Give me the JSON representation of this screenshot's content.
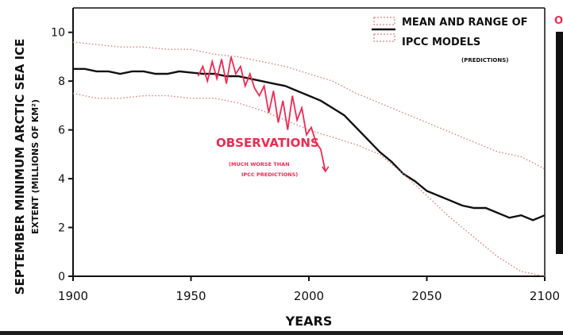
{
  "chart_data": {
    "type": "line",
    "xlabel": "YEARS",
    "ylabel_line1": "SEPTEMBER MINIMUM ARCTIC SEA ICE",
    "ylabel_line2": "EXTENT (MILLIONS OF KM²)",
    "xlim": [
      1900,
      2100
    ],
    "ylim": [
      0,
      11
    ],
    "x_ticks": [
      1900,
      1950,
      2000,
      2050,
      2100
    ],
    "y_ticks": [
      0,
      2,
      4,
      6,
      8,
      10
    ],
    "grid": false,
    "legend": {
      "placement": "top-right",
      "line1": "MEAN AND RANGE OF",
      "line2": "IPCC MODELS",
      "line3": "(PREDICTIONS)"
    },
    "annotations": {
      "observations_label": "OBSERVATIONS",
      "observations_note_line1": "(MUCH WORSE THAN",
      "observations_note_line2": "IPCC PREDICTIONS)",
      "edge_letter": "O"
    },
    "colors": {
      "mean": "#111111",
      "range": "#d98080",
      "observations": "#ee2a52",
      "background": "#ffffff"
    },
    "series": [
      {
        "name": "mean",
        "style": "solid",
        "x": [
          1900,
          1905,
          1910,
          1915,
          1920,
          1925,
          1930,
          1935,
          1940,
          1945,
          1950,
          1955,
          1960,
          1965,
          1970,
          1975,
          1980,
          1985,
          1990,
          1995,
          2000,
          2005,
          2010,
          2015,
          2020,
          2025,
          2030,
          2035,
          2040,
          2045,
          2050,
          2055,
          2060,
          2065,
          2070,
          2075,
          2080,
          2085,
          2090,
          2095,
          2100
        ],
        "y": [
          8.5,
          8.5,
          8.4,
          8.4,
          8.3,
          8.4,
          8.4,
          8.3,
          8.3,
          8.4,
          8.35,
          8.3,
          8.3,
          8.2,
          8.2,
          8.1,
          8.0,
          7.9,
          7.8,
          7.6,
          7.4,
          7.2,
          6.9,
          6.6,
          6.1,
          5.6,
          5.1,
          4.7,
          4.2,
          3.9,
          3.5,
          3.3,
          3.1,
          2.9,
          2.8,
          2.8,
          2.6,
          2.4,
          2.5,
          2.3,
          2.5
        ]
      },
      {
        "name": "range-upper",
        "style": "dotted",
        "x": [
          1900,
          1910,
          1920,
          1930,
          1940,
          1950,
          1960,
          1970,
          1980,
          1990,
          2000,
          2010,
          2020,
          2030,
          2040,
          2050,
          2060,
          2070,
          2080,
          2090,
          2100
        ],
        "y": [
          9.6,
          9.5,
          9.4,
          9.4,
          9.3,
          9.3,
          9.1,
          9.0,
          8.8,
          8.6,
          8.3,
          8.0,
          7.5,
          7.1,
          6.7,
          6.3,
          5.9,
          5.5,
          5.1,
          4.9,
          4.4
        ]
      },
      {
        "name": "range-lower",
        "style": "dotted",
        "x": [
          1900,
          1910,
          1920,
          1930,
          1940,
          1950,
          1960,
          1970,
          1980,
          1990,
          2000,
          2010,
          2020,
          2030,
          2040,
          2050,
          2060,
          2070,
          2080,
          2090,
          2100
        ],
        "y": [
          7.5,
          7.3,
          7.3,
          7.4,
          7.4,
          7.3,
          7.3,
          7.1,
          6.8,
          6.4,
          6.0,
          5.7,
          5.4,
          5.0,
          4.2,
          3.3,
          2.4,
          1.6,
          0.8,
          0.2,
          0.0
        ]
      },
      {
        "name": "observations",
        "style": "solid",
        "x": [
          1953,
          1955,
          1957,
          1959,
          1961,
          1963,
          1965,
          1967,
          1969,
          1971,
          1973,
          1975,
          1977,
          1979,
          1981,
          1983,
          1985,
          1987,
          1989,
          1991,
          1993,
          1995,
          1997,
          1999,
          2001,
          2003,
          2005,
          2007
        ],
        "y": [
          8.2,
          8.6,
          8.0,
          8.8,
          8.1,
          8.9,
          7.9,
          9.0,
          8.3,
          8.6,
          7.8,
          8.3,
          7.7,
          7.4,
          7.8,
          6.7,
          7.6,
          6.3,
          7.2,
          6.0,
          7.4,
          6.4,
          6.9,
          5.8,
          6.1,
          5.5,
          5.2,
          4.3
        ]
      }
    ]
  }
}
